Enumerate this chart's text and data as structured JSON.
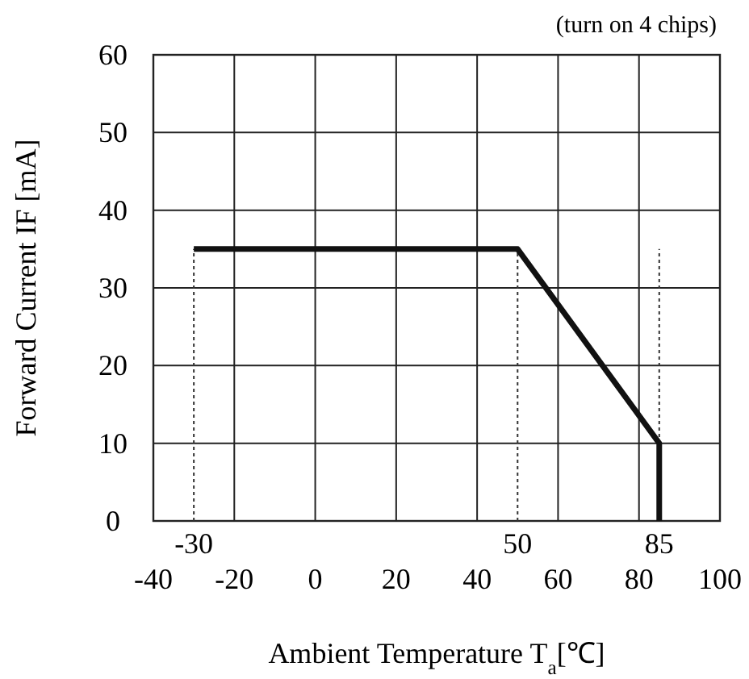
{
  "chart_data": {
    "type": "line",
    "xlabel": "Ambient Temperature  T$_{a}$[℃]",
    "ylabel": "Forward Current  IF [mA]",
    "annotations": [
      "(turn on 4 chips)"
    ],
    "x": [
      -30,
      50,
      85,
      85
    ],
    "series": [
      {
        "color": "#111111",
        "values": [
          35,
          35,
          10,
          0
        ]
      }
    ],
    "xlim": [
      -40,
      100
    ],
    "xticks": [
      -40,
      -20,
      0,
      20,
      40,
      60,
      80,
      100
    ],
    "ylim": [
      0,
      60
    ],
    "yticks": [
      0,
      10,
      20,
      30,
      40,
      50,
      60
    ],
    "grid": true,
    "line_style": "solid",
    "marker": "none",
    "ref_lines": [
      {
        "axis": "x",
        "value": -30,
        "label": "-30",
        "line_style": "dotted"
      },
      {
        "axis": "x",
        "value": 50,
        "label": "50",
        "line_style": "dotted"
      },
      {
        "axis": "x",
        "value": 85,
        "label": "85",
        "line_style": "dotted"
      }
    ]
  }
}
